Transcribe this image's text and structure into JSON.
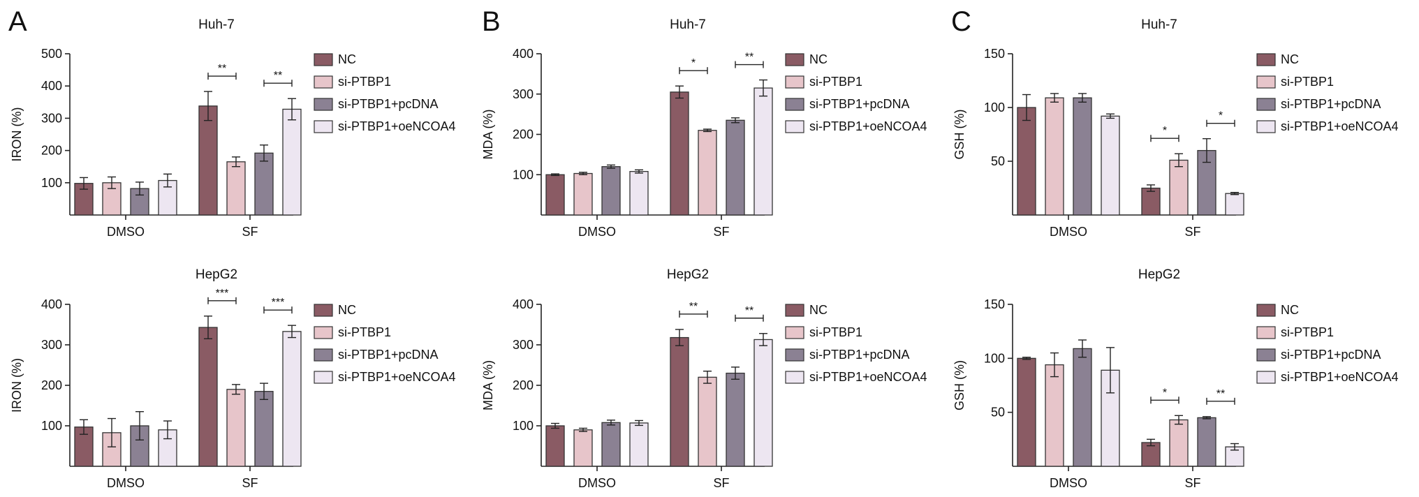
{
  "panel_letters": [
    "A",
    "B",
    "C"
  ],
  "colors": {
    "NC": "#8a5b64",
    "si-PTBP1": "#e7c5ca",
    "si-PTBP1+pcDNA": "#8b8193",
    "si-PTBP1+oeNCOA4": "#ede6f1"
  },
  "chart_data": [
    {
      "panel": "A",
      "type": "bar",
      "title": "Huh-7",
      "xlabel": "",
      "ylabel": "IRON (%)",
      "ylim": [
        0,
        500
      ],
      "yticks": [
        100,
        200,
        300,
        400,
        500
      ],
      "categories": [
        "DMSO",
        "SF"
      ],
      "series": [
        {
          "name": "NC",
          "values": [
            98,
            338
          ],
          "errors": [
            18,
            45
          ]
        },
        {
          "name": "si-PTBP1",
          "values": [
            100,
            165
          ],
          "errors": [
            18,
            15
          ]
        },
        {
          "name": "si-PTBP1+pcDNA",
          "values": [
            82,
            192
          ],
          "errors": [
            20,
            25
          ]
        },
        {
          "name": "si-PTBP1+oeNCOA4",
          "values": [
            107,
            328
          ],
          "errors": [
            20,
            33
          ]
        }
      ],
      "significance": [
        {
          "category": "SF",
          "from": "NC",
          "to": "si-PTBP1",
          "label": "**"
        },
        {
          "category": "SF",
          "from": "si-PTBP1+pcDNA",
          "to": "si-PTBP1+oeNCOA4",
          "label": "**"
        }
      ],
      "legend": "right"
    },
    {
      "panel": "A",
      "type": "bar",
      "title": "HepG2",
      "xlabel": "",
      "ylabel": "IRON (%)",
      "ylim": [
        0,
        400
      ],
      "yticks": [
        100,
        200,
        300,
        400
      ],
      "categories": [
        "DMSO",
        "SF"
      ],
      "series": [
        {
          "name": "NC",
          "values": [
            97,
            343
          ],
          "errors": [
            18,
            28
          ]
        },
        {
          "name": "si-PTBP1",
          "values": [
            83,
            190
          ],
          "errors": [
            35,
            12
          ]
        },
        {
          "name": "si-PTBP1+pcDNA",
          "values": [
            100,
            185
          ],
          "errors": [
            35,
            20
          ]
        },
        {
          "name": "si-PTBP1+oeNCOA4",
          "values": [
            90,
            333
          ],
          "errors": [
            22,
            15
          ]
        }
      ],
      "significance": [
        {
          "category": "SF",
          "from": "NC",
          "to": "si-PTBP1",
          "label": "***"
        },
        {
          "category": "SF",
          "from": "si-PTBP1+pcDNA",
          "to": "si-PTBP1+oeNCOA4",
          "label": "***"
        }
      ],
      "legend": "right"
    },
    {
      "panel": "B",
      "type": "bar",
      "title": "Huh-7",
      "xlabel": "",
      "ylabel": "MDA (%)",
      "ylim": [
        0,
        400
      ],
      "yticks": [
        100,
        200,
        300,
        400
      ],
      "categories": [
        "DMSO",
        "SF"
      ],
      "series": [
        {
          "name": "NC",
          "values": [
            100,
            305
          ],
          "errors": [
            2,
            15
          ]
        },
        {
          "name": "si-PTBP1",
          "values": [
            103,
            210
          ],
          "errors": [
            3,
            3
          ]
        },
        {
          "name": "si-PTBP1+pcDNA",
          "values": [
            120,
            235
          ],
          "errors": [
            4,
            6
          ]
        },
        {
          "name": "si-PTBP1+oeNCOA4",
          "values": [
            108,
            315
          ],
          "errors": [
            4,
            20
          ]
        }
      ],
      "significance": [
        {
          "category": "SF",
          "from": "NC",
          "to": "si-PTBP1",
          "label": "*"
        },
        {
          "category": "SF",
          "from": "si-PTBP1+pcDNA",
          "to": "si-PTBP1+oeNCOA4",
          "label": "**"
        }
      ],
      "legend": "right"
    },
    {
      "panel": "B",
      "type": "bar",
      "title": "HepG2",
      "xlabel": "",
      "ylabel": "MDA (%)",
      "ylim": [
        0,
        400
      ],
      "yticks": [
        100,
        200,
        300,
        400
      ],
      "categories": [
        "DMSO",
        "SF"
      ],
      "series": [
        {
          "name": "NC",
          "values": [
            100,
            318
          ],
          "errors": [
            6,
            20
          ]
        },
        {
          "name": "si-PTBP1",
          "values": [
            90,
            220
          ],
          "errors": [
            4,
            15
          ]
        },
        {
          "name": "si-PTBP1+pcDNA",
          "values": [
            108,
            230
          ],
          "errors": [
            6,
            15
          ]
        },
        {
          "name": "si-PTBP1+oeNCOA4",
          "values": [
            107,
            313
          ],
          "errors": [
            6,
            15
          ]
        }
      ],
      "significance": [
        {
          "category": "SF",
          "from": "NC",
          "to": "si-PTBP1",
          "label": "**"
        },
        {
          "category": "SF",
          "from": "si-PTBP1+pcDNA",
          "to": "si-PTBP1+oeNCOA4",
          "label": "**"
        }
      ],
      "legend": "right"
    },
    {
      "panel": "C",
      "type": "bar",
      "title": "Huh-7",
      "xlabel": "",
      "ylabel": "GSH (%)",
      "ylim": [
        0,
        150
      ],
      "yticks": [
        50,
        100,
        150
      ],
      "categories": [
        "DMSO",
        "SF"
      ],
      "series": [
        {
          "name": "NC",
          "values": [
            100,
            25
          ],
          "errors": [
            12,
            3
          ]
        },
        {
          "name": "si-PTBP1",
          "values": [
            109,
            51
          ],
          "errors": [
            4,
            6
          ]
        },
        {
          "name": "si-PTBP1+pcDNA",
          "values": [
            109,
            60
          ],
          "errors": [
            4,
            11
          ]
        },
        {
          "name": "si-PTBP1+oeNCOA4",
          "values": [
            92,
            20
          ],
          "errors": [
            2,
            1
          ]
        }
      ],
      "significance": [
        {
          "category": "SF",
          "from": "NC",
          "to": "si-PTBP1",
          "label": "*"
        },
        {
          "category": "SF",
          "from": "si-PTBP1+pcDNA",
          "to": "si-PTBP1+oeNCOA4",
          "label": "*"
        }
      ],
      "legend": "right"
    },
    {
      "panel": "C",
      "type": "bar",
      "title": "HepG2",
      "xlabel": "",
      "ylabel": "GSH (%)",
      "ylim": [
        0,
        150
      ],
      "yticks": [
        50,
        100,
        150
      ],
      "categories": [
        "DMSO",
        "SF"
      ],
      "series": [
        {
          "name": "NC",
          "values": [
            100,
            22
          ],
          "errors": [
            1,
            3
          ]
        },
        {
          "name": "si-PTBP1",
          "values": [
            94,
            43
          ],
          "errors": [
            11,
            4
          ]
        },
        {
          "name": "si-PTBP1+pcDNA",
          "values": [
            109,
            45
          ],
          "errors": [
            8,
            1
          ]
        },
        {
          "name": "si-PTBP1+oeNCOA4",
          "values": [
            89,
            18
          ],
          "errors": [
            21,
            3
          ]
        }
      ],
      "significance": [
        {
          "category": "SF",
          "from": "NC",
          "to": "si-PTBP1",
          "label": "*"
        },
        {
          "category": "SF",
          "from": "si-PTBP1+pcDNA",
          "to": "si-PTBP1+oeNCOA4",
          "label": "**"
        }
      ],
      "legend": "right"
    }
  ]
}
